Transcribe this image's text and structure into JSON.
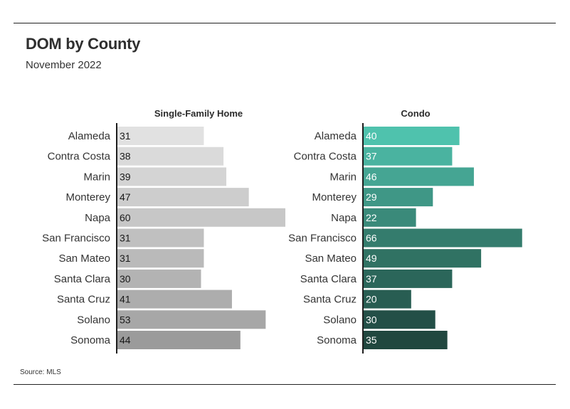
{
  "title": "DOM by County",
  "subtitle": "November 2022",
  "source": "Source: MLS",
  "chart_data": [
    {
      "type": "bar",
      "orientation": "horizontal",
      "title": "Single-Family Home",
      "categories": [
        "Alameda",
        "Contra Costa",
        "Marin",
        "Monterey",
        "Napa",
        "San Francisco",
        "San Mateo",
        "Santa Clara",
        "Santa Cruz",
        "Solano",
        "Sonoma"
      ],
      "values": [
        31,
        38,
        39,
        47,
        60,
        31,
        31,
        30,
        41,
        53,
        44
      ],
      "colors": [
        "#e1e1e1",
        "#dadada",
        "#d4d4d4",
        "#cdcdcd",
        "#c7c7c7",
        "#c0c0c0",
        "#bababa",
        "#b3b3b3",
        "#adadad",
        "#a7a7a7",
        "#9b9b9b"
      ],
      "value_label_color": "#1a1a1a",
      "xlim": [
        0,
        60
      ]
    },
    {
      "type": "bar",
      "orientation": "horizontal",
      "title": "Condo",
      "categories": [
        "Alameda",
        "Contra Costa",
        "Marin",
        "Monterey",
        "Napa",
        "San Francisco",
        "San Mateo",
        "Santa Clara",
        "Santa Cruz",
        "Solano",
        "Sonoma"
      ],
      "values": [
        40,
        37,
        46,
        29,
        22,
        66,
        49,
        37,
        20,
        30,
        35
      ],
      "colors": [
        "#4fc2ad",
        "#4ab3a0",
        "#45a593",
        "#3f9786",
        "#3a8a7a",
        "#347c6d",
        "#307263",
        "#2b665a",
        "#285d52",
        "#234f47",
        "#21473f"
      ],
      "value_label_color": "#ffffff",
      "xlim": [
        0,
        66
      ]
    }
  ]
}
